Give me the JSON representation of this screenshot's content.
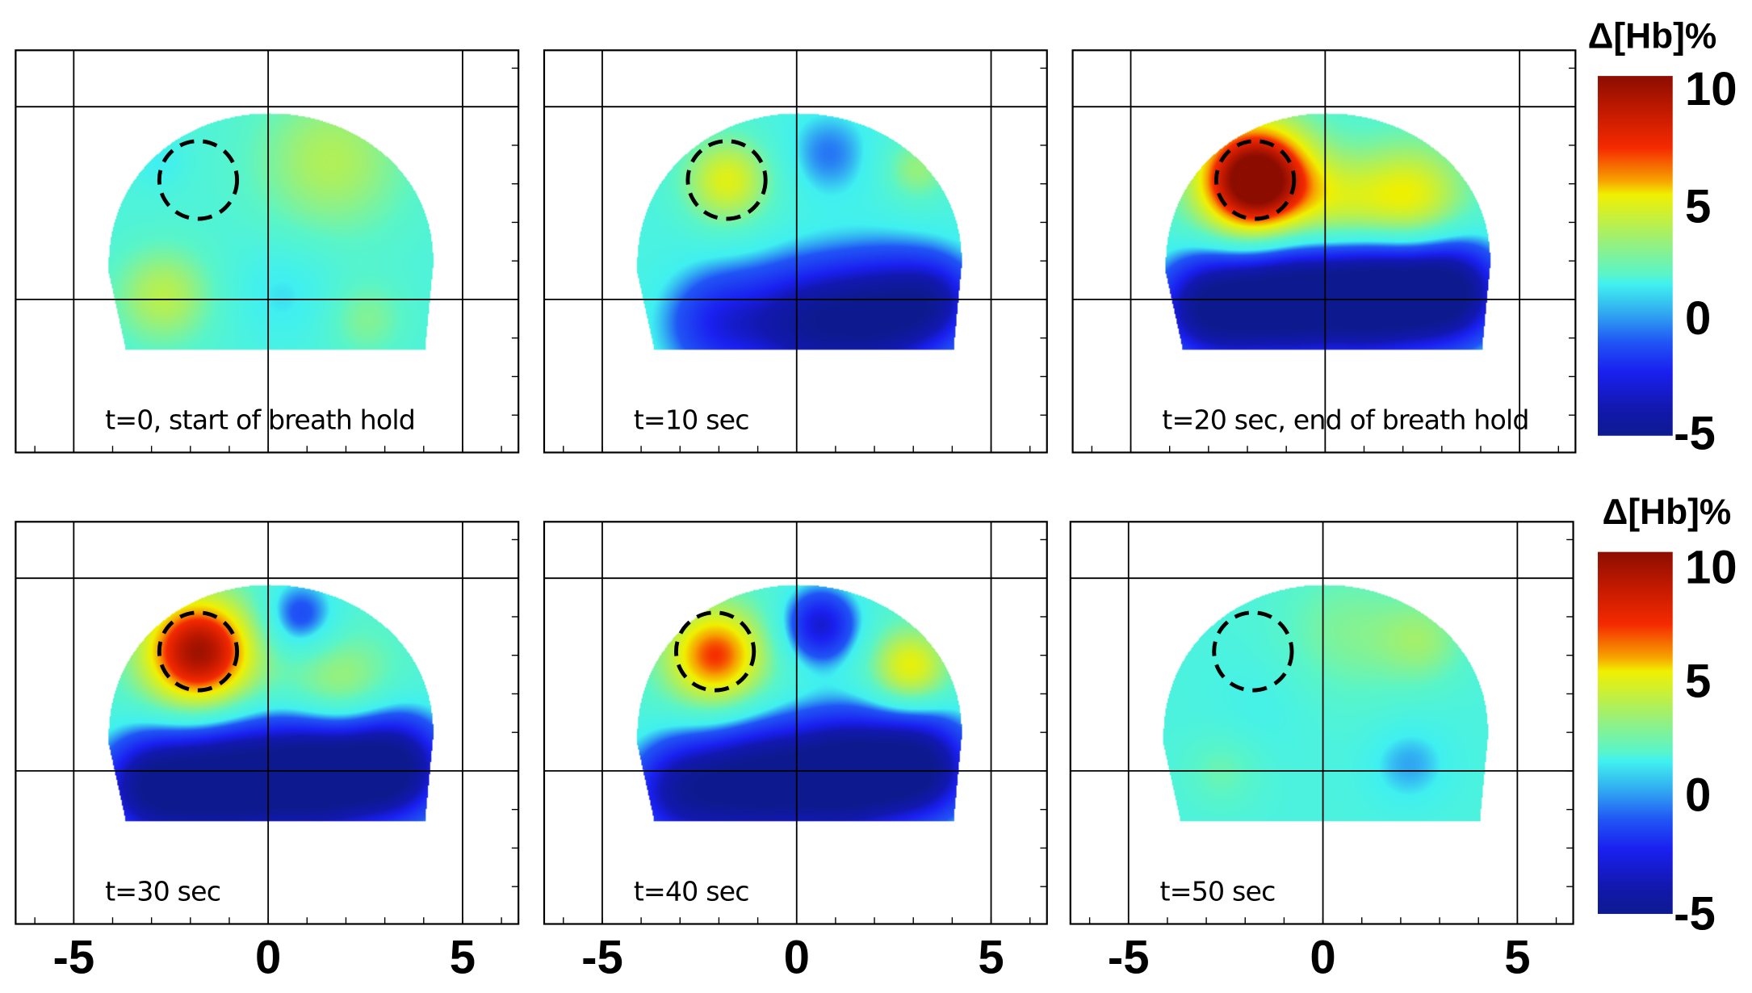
{
  "chart_data": {
    "type": "heatmap",
    "title": "",
    "colorbar": {
      "label": "Δ[Hb]%",
      "range": [
        -5,
        10
      ],
      "ticks": [
        "10",
        "5",
        "0",
        "-5"
      ],
      "colormap": [
        "#0d1a8f",
        "#1a20f0",
        "#2055f5",
        "#40f0f0",
        "#a0f070",
        "#f0f000",
        "#f7a000",
        "#f52a00",
        "#8c0d00"
      ]
    },
    "x_ticks": [
      "-5",
      "0",
      "5"
    ],
    "xlim": [
      -6.5,
      6.5
    ],
    "ylim": [
      -4,
      6.5
    ],
    "region_of_interest": {
      "x": -1.8,
      "y": 3.1,
      "radius": 1.0
    },
    "panels": [
      {
        "label": "t=0, start of breath hold",
        "time_s": 0,
        "base": 0.8,
        "blobs": [
          {
            "x": 1.6,
            "y": 3.6,
            "v": 2.6,
            "s": 1.4
          },
          {
            "x": -2.7,
            "y": 0.1,
            "v": 2.8,
            "s": 0.9
          },
          {
            "x": 0.4,
            "y": 0.2,
            "v": -1.0,
            "s": 1.0
          },
          {
            "x": 2.5,
            "y": -0.5,
            "v": 1.6,
            "s": 0.7
          },
          {
            "x": -2.8,
            "y": 3.6,
            "v": -0.8,
            "s": 0.5
          }
        ]
      },
      {
        "label": "t=10 sec",
        "time_s": 10,
        "base": 0.6,
        "blobs": [
          {
            "x": -1.8,
            "y": 3.1,
            "v": 4.0,
            "s": 0.8
          },
          {
            "x": 0.8,
            "y": 3.8,
            "v": -1.4,
            "s": 0.8
          },
          {
            "x": 3.1,
            "y": 3.4,
            "v": 2.2,
            "s": 0.6
          },
          {
            "x": -2.0,
            "y": -0.6,
            "v": -2.8,
            "s": 1.0
          },
          {
            "x": 0.2,
            "y": -0.6,
            "v": -4.2,
            "s": 1.1
          },
          {
            "x": 2.2,
            "y": -0.4,
            "v": -4.8,
            "s": 1.1
          },
          {
            "x": 3.6,
            "y": 0.0,
            "v": -3.0,
            "s": 0.8
          }
        ]
      },
      {
        "label": "t=20 sec, end of breath hold",
        "time_s": 20,
        "base": 1.0,
        "blobs": [
          {
            "x": -1.8,
            "y": 3.1,
            "v": 11.0,
            "s": 1.0
          },
          {
            "x": 2.2,
            "y": 2.6,
            "v": 4.0,
            "s": 1.0
          },
          {
            "x": 0.4,
            "y": 2.4,
            "v": 2.5,
            "s": 0.9
          },
          {
            "x": -3.0,
            "y": -0.2,
            "v": -5.5,
            "s": 1.0
          },
          {
            "x": -1.0,
            "y": 0.0,
            "v": -6.0,
            "s": 1.1
          },
          {
            "x": 1.2,
            "y": 0.1,
            "v": -6.5,
            "s": 1.1
          },
          {
            "x": 3.2,
            "y": 0.2,
            "v": -6.0,
            "s": 1.0
          }
        ]
      },
      {
        "label": "t=30 sec",
        "time_s": 30,
        "base": 1.0,
        "blobs": [
          {
            "x": -1.8,
            "y": 3.1,
            "v": 8.5,
            "s": 1.0
          },
          {
            "x": 0.8,
            "y": 4.0,
            "v": -2.6,
            "s": 0.7
          },
          {
            "x": 1.8,
            "y": 2.2,
            "v": 2.4,
            "s": 1.0
          },
          {
            "x": -3.0,
            "y": -0.4,
            "v": -5.5,
            "s": 1.0
          },
          {
            "x": -1.0,
            "y": -0.3,
            "v": -6.0,
            "s": 1.1
          },
          {
            "x": 1.2,
            "y": -0.1,
            "v": -6.5,
            "s": 1.1
          },
          {
            "x": 3.2,
            "y": 0.1,
            "v": -6.0,
            "s": 1.0
          }
        ]
      },
      {
        "label": "t=40 sec",
        "time_s": 40,
        "base": 1.0,
        "blobs": [
          {
            "x": -2.1,
            "y": 3.0,
            "v": 6.0,
            "s": 0.9
          },
          {
            "x": 0.6,
            "y": 3.8,
            "v": -4.0,
            "s": 0.7
          },
          {
            "x": 2.9,
            "y": 2.7,
            "v": 4.0,
            "s": 0.7
          },
          {
            "x": -3.0,
            "y": -0.5,
            "v": -4.5,
            "s": 1.0
          },
          {
            "x": -1.0,
            "y": -0.3,
            "v": -5.5,
            "s": 1.1
          },
          {
            "x": 1.2,
            "y": -0.1,
            "v": -6.5,
            "s": 1.1
          },
          {
            "x": 3.2,
            "y": 0.1,
            "v": -5.5,
            "s": 1.0
          }
        ]
      },
      {
        "label": "t=50 sec",
        "time_s": 50,
        "base": 0.7,
        "blobs": [
          {
            "x": 0.6,
            "y": 3.6,
            "v": 1.6,
            "s": 1.3
          },
          {
            "x": 2.6,
            "y": 3.4,
            "v": 1.8,
            "s": 0.8
          },
          {
            "x": 2.2,
            "y": 0.2,
            "v": -1.2,
            "s": 0.8
          },
          {
            "x": -2.6,
            "y": 0.0,
            "v": 1.2,
            "s": 0.7
          },
          {
            "x": -1.5,
            "y": 1.8,
            "v": -0.5,
            "s": 1.0
          }
        ]
      }
    ]
  }
}
